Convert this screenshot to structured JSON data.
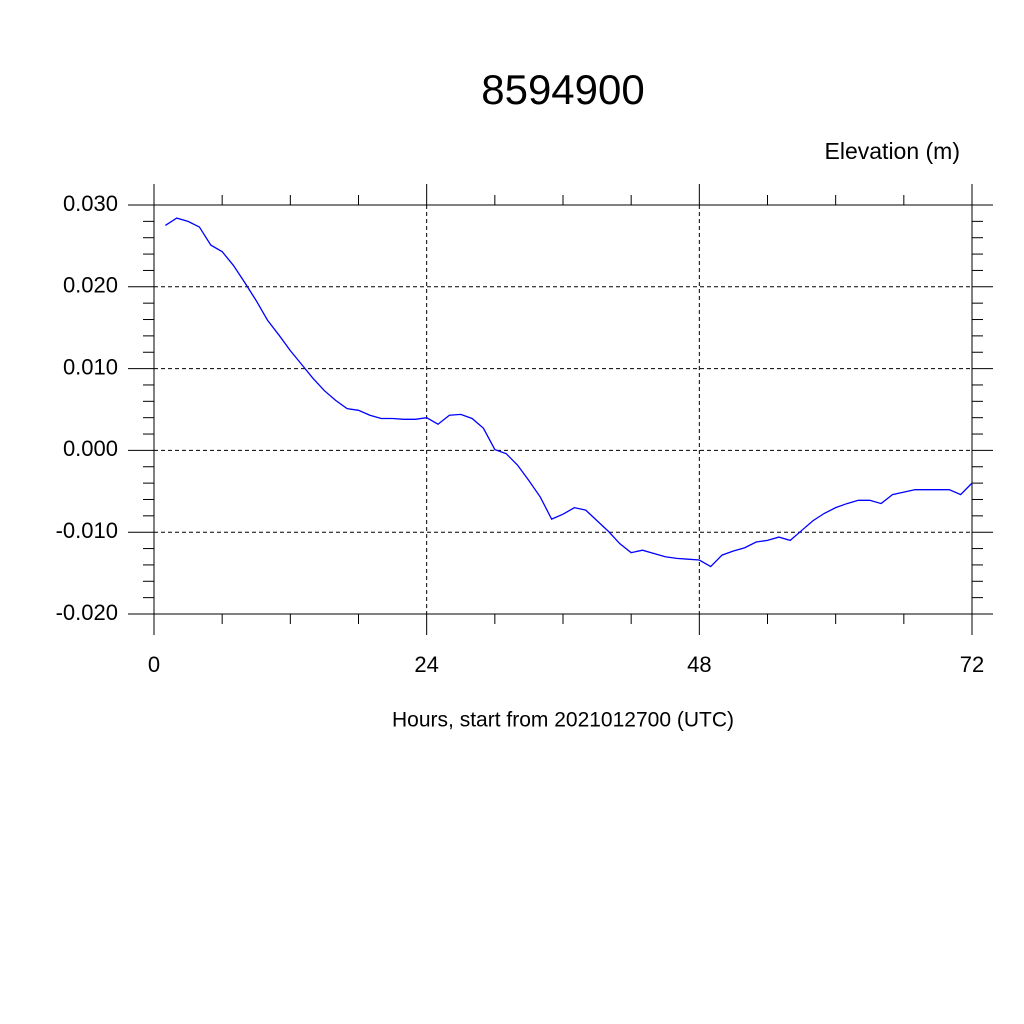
{
  "chart_data": {
    "type": "line",
    "title": "8594900",
    "y_label": "Elevation (m)",
    "x_label": "Hours, start from 2021012700 (UTC)",
    "x": [
      1,
      2,
      3,
      4,
      5,
      6,
      7,
      8,
      9,
      10,
      11,
      12,
      13,
      14,
      15,
      16,
      17,
      18,
      19,
      20,
      21,
      22,
      23,
      24,
      25,
      26,
      27,
      28,
      29,
      30,
      31,
      32,
      33,
      34,
      35,
      36,
      37,
      38,
      39,
      40,
      41,
      42,
      43,
      44,
      45,
      46,
      47,
      48,
      49,
      50,
      51,
      52,
      53,
      54,
      55,
      56,
      57,
      58,
      59,
      60,
      61,
      62,
      63,
      64,
      65,
      66,
      67,
      68,
      69,
      70,
      71,
      72
    ],
    "series": [
      {
        "name": "Elevation",
        "color": "#0000ff",
        "values": [
          0.0275,
          0.0284,
          0.028,
          0.0273,
          0.0251,
          0.0243,
          0.0226,
          0.0205,
          0.0183,
          0.0159,
          0.0141,
          0.0122,
          0.0105,
          0.0088,
          0.0073,
          0.0061,
          0.0051,
          0.0049,
          0.0043,
          0.0039,
          0.0039,
          0.0038,
          0.0038,
          0.004,
          0.0032,
          0.0043,
          0.0044,
          0.0039,
          0.0027,
          0.0001,
          -0.0004,
          -0.0018,
          -0.0037,
          -0.0057,
          -0.0084,
          -0.0078,
          -0.007,
          -0.0073,
          -0.0086,
          -0.0099,
          -0.0114,
          -0.0125,
          -0.0122,
          -0.0126,
          -0.013,
          -0.0132,
          -0.0133,
          -0.0134,
          -0.0142,
          -0.0128,
          -0.0123,
          -0.0119,
          -0.0112,
          -0.011,
          -0.0106,
          -0.011,
          -0.0098,
          -0.0086,
          -0.0077,
          -0.007,
          -0.0065,
          -0.0061,
          -0.0061,
          -0.0065,
          -0.0054,
          -0.0051,
          -0.0048,
          -0.0048,
          -0.0048,
          -0.0048,
          -0.0054,
          -0.004
        ]
      }
    ],
    "xlim": [
      0,
      72
    ],
    "xticks": [
      0,
      24,
      48,
      72
    ],
    "xminorticks": [
      6,
      12,
      18,
      30,
      36,
      42,
      54,
      60,
      66
    ],
    "ylim": [
      -0.02,
      0.03
    ],
    "yticks": [
      {
        "value": -0.02,
        "label": "-0.020"
      },
      {
        "value": -0.01,
        "label": "-0.010"
      },
      {
        "value": 0,
        "label": "0.000"
      },
      {
        "value": 0.01,
        "label": "0.010"
      },
      {
        "value": 0.02,
        "label": "0.020"
      },
      {
        "value": 0.03,
        "label": "0.030"
      }
    ],
    "yminorticks": [
      -0.018,
      -0.016,
      -0.014,
      -0.012,
      -0.008,
      -0.006,
      -0.004,
      -0.002,
      0.002,
      0.004,
      0.006,
      0.008,
      0.012,
      0.014,
      0.016,
      0.018,
      0.022,
      0.024,
      0.026,
      0.028
    ],
    "grid": true
  }
}
